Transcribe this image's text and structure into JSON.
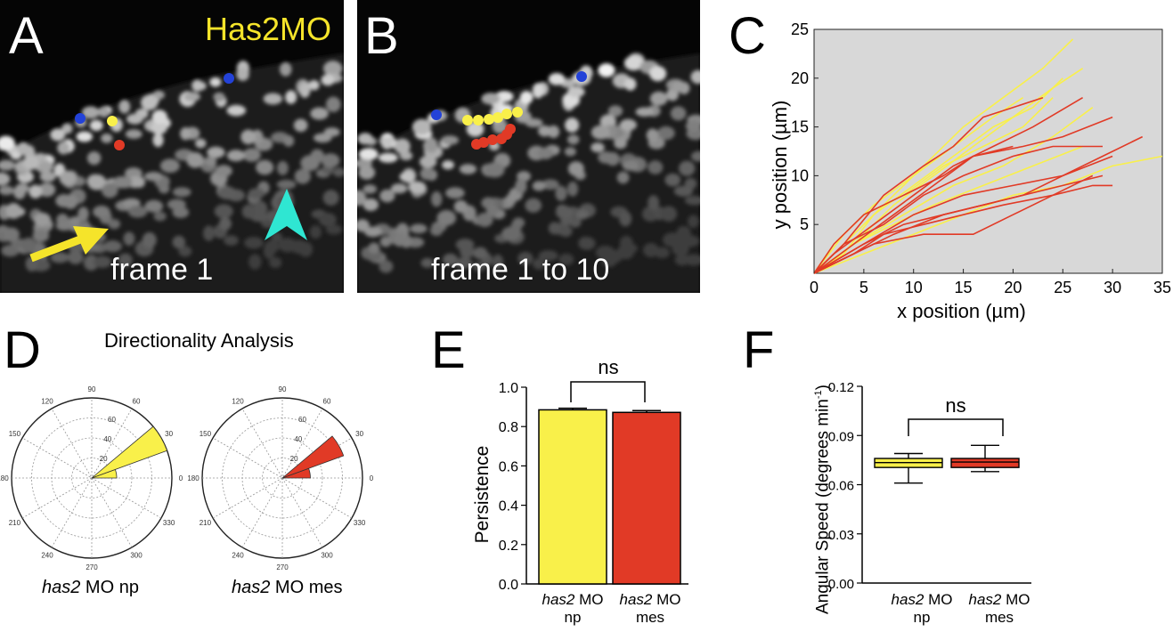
{
  "figure": {
    "panels": {
      "A": {
        "letter": "A",
        "label_tag": "Has2MO",
        "caption": "frame 1"
      },
      "B": {
        "letter": "B",
        "caption": "frame 1 to 10"
      },
      "C": {
        "letter": "C"
      },
      "D": {
        "letter": "D",
        "title": "Directionality Analysis"
      },
      "E": {
        "letter": "E"
      },
      "F": {
        "letter": "F"
      }
    },
    "colors": {
      "yellow": "#f9f04a",
      "red": "#e13a26",
      "plot_bg": "#d8d8d8",
      "arrow_yellow": "#f5e42a",
      "arrowhead_cyan": "#2fe6d2",
      "dot_blue": "#2342d8"
    },
    "icons": [
      "yellow-arrow-icon",
      "cyan-arrowhead-icon"
    ]
  },
  "chart_data": [
    {
      "id": "C",
      "type": "line",
      "xlabel": "x position (µm)",
      "ylabel": "y position (µm)",
      "xlim": [
        0,
        35
      ],
      "ylim": [
        0,
        25
      ],
      "xticks": [
        "0",
        "5",
        "10",
        "15",
        "20",
        "25",
        "30",
        "35"
      ],
      "yticks": [
        "5",
        "10",
        "15",
        "20",
        "25"
      ],
      "series": [
        {
          "group": "yellow",
          "x": [
            0,
            3,
            7,
            11,
            15,
            19,
            23,
            26
          ],
          "y": [
            0,
            3,
            7,
            11,
            15,
            18,
            21,
            24
          ]
        },
        {
          "group": "yellow",
          "x": [
            0,
            4,
            8,
            12,
            16,
            20,
            24,
            27
          ],
          "y": [
            0,
            3,
            7,
            10,
            13,
            16,
            19,
            21
          ]
        },
        {
          "group": "yellow",
          "x": [
            0,
            3,
            6,
            10,
            14,
            18,
            22,
            25
          ],
          "y": [
            0,
            2,
            6,
            9,
            12,
            15,
            17,
            20
          ]
        },
        {
          "group": "yellow",
          "x": [
            0,
            2,
            5,
            9,
            13,
            17,
            21,
            24
          ],
          "y": [
            0,
            3,
            6,
            8,
            11,
            13,
            15,
            18
          ]
        },
        {
          "group": "yellow",
          "x": [
            0,
            4,
            9,
            14,
            19,
            24,
            28
          ],
          "y": [
            0,
            3,
            6,
            9,
            11,
            14,
            17
          ]
        },
        {
          "group": "yellow",
          "x": [
            0,
            5,
            10,
            15,
            20,
            25,
            30,
            35
          ],
          "y": [
            0,
            2,
            4,
            6,
            8,
            9,
            11,
            12
          ]
        },
        {
          "group": "yellow",
          "x": [
            0,
            4,
            8,
            12,
            17,
            22,
            27
          ],
          "y": [
            0,
            3,
            5,
            7,
            9,
            11,
            13
          ]
        },
        {
          "group": "yellow",
          "x": [
            0,
            3,
            6,
            10,
            14,
            18,
            21
          ],
          "y": [
            0,
            4,
            7,
            10,
            13,
            16,
            18
          ]
        },
        {
          "group": "red",
          "x": [
            0,
            3,
            7,
            11,
            14,
            17,
            20,
            23
          ],
          "y": [
            0,
            3,
            8,
            11,
            13,
            16,
            17,
            18
          ]
        },
        {
          "group": "red",
          "x": [
            0,
            2,
            6,
            10,
            14,
            18,
            22,
            27
          ],
          "y": [
            0,
            2,
            5,
            8,
            11,
            13,
            15,
            18
          ]
        },
        {
          "group": "red",
          "x": [
            0,
            4,
            8,
            12,
            16,
            21,
            25,
            30
          ],
          "y": [
            0,
            3,
            6,
            9,
            12,
            13,
            14,
            16
          ]
        },
        {
          "group": "red",
          "x": [
            0,
            5,
            10,
            15,
            20,
            25,
            29,
            33
          ],
          "y": [
            0,
            3,
            6,
            8,
            9,
            10,
            12,
            14
          ]
        },
        {
          "group": "red",
          "x": [
            0,
            4,
            8,
            13,
            17,
            21,
            25,
            30
          ],
          "y": [
            0,
            2,
            4,
            6,
            7,
            8,
            10,
            12
          ]
        },
        {
          "group": "red",
          "x": [
            0,
            5,
            9,
            13,
            17,
            21,
            25,
            29
          ],
          "y": [
            0,
            3,
            5,
            6,
            7,
            8,
            9,
            10
          ]
        },
        {
          "group": "red",
          "x": [
            0,
            4,
            7,
            11,
            15,
            19,
            24,
            28,
            30
          ],
          "y": [
            0,
            2,
            4,
            5,
            6,
            7,
            8,
            9,
            9
          ]
        },
        {
          "group": "red",
          "x": [
            0,
            6,
            11,
            16,
            20,
            24,
            28
          ],
          "y": [
            0,
            3,
            4,
            4,
            6,
            8,
            10
          ]
        },
        {
          "group": "red",
          "x": [
            0,
            3,
            7,
            11,
            15,
            20,
            24,
            27,
            29
          ],
          "y": [
            0,
            3,
            5,
            8,
            10,
            12,
            13,
            13,
            13
          ]
        },
        {
          "group": "red",
          "x": [
            0,
            2,
            5,
            9,
            13,
            16,
            20
          ],
          "y": [
            0,
            3,
            6,
            8,
            10,
            12,
            13
          ]
        }
      ]
    },
    {
      "id": "D-np",
      "type": "polar-rose",
      "caption_italic": "has2",
      "caption_rest": " MO np",
      "angle_labels": [
        "0",
        "30",
        "60",
        "90",
        "120",
        "150",
        "180",
        "210",
        "240",
        "270",
        "300",
        "330"
      ],
      "radial_labels": [
        "20",
        "40",
        "60"
      ],
      "rmax": 80,
      "wedges": [
        {
          "from": 0,
          "to": 20,
          "r": 25
        },
        {
          "from": 20,
          "to": 40,
          "r": 80
        }
      ]
    },
    {
      "id": "D-mes",
      "type": "polar-rose",
      "caption_italic": "has2",
      "caption_rest": " MO mes",
      "angle_labels": [
        "0",
        "30",
        "60",
        "90",
        "120",
        "150",
        "180",
        "210",
        "240",
        "270",
        "300",
        "330"
      ],
      "radial_labels": [
        "20",
        "40",
        "60"
      ],
      "rmax": 80,
      "wedges": [
        {
          "from": 0,
          "to": 20,
          "r": 28
        },
        {
          "from": 20,
          "to": 40,
          "r": 65
        }
      ]
    },
    {
      "id": "E",
      "type": "bar",
      "ylabel": "Persistence",
      "ylim": [
        0,
        1.0
      ],
      "yticks": [
        "0.0",
        "0.2",
        "0.4",
        "0.6",
        "0.8",
        "1.0"
      ],
      "categories": [
        {
          "italic": "has2",
          "rest": " MO",
          "line2": "np"
        },
        {
          "italic": "has2",
          "rest": " MO",
          "line2": "mes"
        }
      ],
      "values": [
        0.885,
        0.872
      ],
      "errors": [
        0.008,
        0.009
      ],
      "significance": "ns"
    },
    {
      "id": "F",
      "type": "box",
      "ylabel": "Angular Speed (degrees min",
      "ylabel_sup": "-1",
      "ylabel_close": ")",
      "ylim": [
        0,
        0.12
      ],
      "yticks": [
        "0.00",
        "0.03",
        "0.06",
        "0.09",
        "0.12"
      ],
      "categories": [
        {
          "italic": "has2",
          "rest": " MO",
          "line2": "np"
        },
        {
          "italic": "has2",
          "rest": " MO",
          "line2": "mes"
        }
      ],
      "boxes": [
        {
          "min": 0.061,
          "q1": 0.0705,
          "median": 0.0735,
          "q3": 0.076,
          "max": 0.079
        },
        {
          "min": 0.068,
          "q1": 0.0705,
          "median": 0.0738,
          "q3": 0.076,
          "max": 0.084
        }
      ],
      "significance": "ns"
    }
  ]
}
